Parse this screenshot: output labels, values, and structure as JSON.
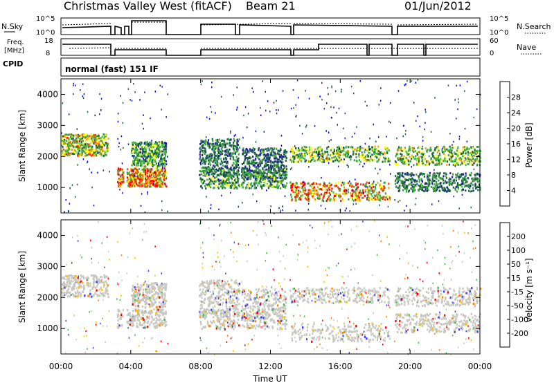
{
  "header": {
    "station": "Christmas Valley West (fitACF)",
    "beam": "Beam 21",
    "date": "01/Jun/2012"
  },
  "panels": {
    "nsky": {
      "left_label": "N.Sky",
      "left_ticks": [
        "10^5",
        "10^0"
      ],
      "right_ticks": [
        "10^5",
        "10^0"
      ],
      "right_label": "N.Search"
    },
    "freq": {
      "left_label_top": "Freq.",
      "left_label_bottom": "[MHz]",
      "left_ticks": [
        "18",
        "8"
      ],
      "right_ticks": [
        "60",
        "0"
      ],
      "right_label": "Nave"
    },
    "cpid": {
      "label": "CPID",
      "value": "normal (fast) 151 IF"
    }
  },
  "chart_data": [
    {
      "type": "heatmap",
      "name": "power",
      "ylabel": "Slant Range [km]",
      "xlabel": "",
      "y_ticks": [
        "4000",
        "3000",
        "2000",
        "1000"
      ],
      "y_values": [
        4000,
        3000,
        2000,
        1000
      ],
      "ylim": [
        180,
        4500
      ],
      "xlim": [
        0,
        24
      ],
      "colorbar": {
        "label": "Power [dB]",
        "ticks": [
          "28",
          "24",
          "20",
          "16",
          "12",
          "8",
          "4"
        ],
        "colors": [
          "#0000ff",
          "#2020a0",
          "#206040",
          "#40a040",
          "#40c040",
          "#ffff00",
          "#ffa000",
          "#ff4000",
          "#ff0000"
        ]
      }
    },
    {
      "type": "heatmap",
      "name": "velocity",
      "ylabel": "Slant Range [km]",
      "xlabel": "Time UT",
      "y_ticks": [
        "4000",
        "3000",
        "2000",
        "1000"
      ],
      "y_values": [
        4000,
        3000,
        2000,
        1000
      ],
      "ylim": [
        180,
        4500
      ],
      "xlim": [
        0,
        24
      ],
      "x_ticks": [
        "00:00",
        "04:00",
        "08:00",
        "12:00",
        "16:00",
        "20:00",
        "00:00"
      ],
      "x_values": [
        0,
        4,
        8,
        12,
        16,
        20,
        24
      ],
      "colorbar": {
        "label": "Velocity [m s⁻¹]",
        "ticks": [
          "200",
          "100",
          "50",
          "15",
          "-15",
          "-50",
          "-100",
          "-200"
        ],
        "colors": [
          "#2020a0",
          "#4040ff",
          "#40c040",
          "#80e040",
          "#c8c8c0",
          "#ffc000",
          "#ff8000",
          "#ff4000",
          "#ff0000"
        ]
      }
    }
  ]
}
